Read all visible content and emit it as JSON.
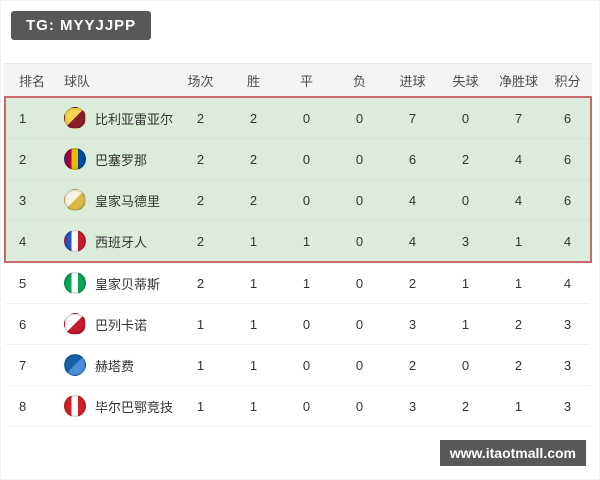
{
  "badges": {
    "tg_label": "TG: MYYJJPP",
    "watermark_label": "www.itaotmall.com",
    "badge_bg": "#58585a"
  },
  "table": {
    "headers": [
      "排名",
      "球队",
      "场次",
      "胜",
      "平",
      "负",
      "进球",
      "失球",
      "净胜球",
      "积分"
    ],
    "highlight": {
      "rows": 4,
      "background": "#dcecdb",
      "border_color": "#c96a6a"
    },
    "rows": [
      {
        "rank": "1",
        "team": "比利亚雷亚尔",
        "logo_icon": "villarreal-crest",
        "logo_colors": [
          "#f2d64b",
          "#8a1f2c"
        ],
        "stats": [
          "2",
          "2",
          "0",
          "0",
          "7",
          "0",
          "7",
          "6"
        ]
      },
      {
        "rank": "2",
        "team": "巴塞罗那",
        "logo_icon": "barcelona-crest",
        "logo_colors": [
          "#a50044",
          "#edbb00",
          "#004d98"
        ],
        "stats": [
          "2",
          "2",
          "0",
          "0",
          "6",
          "2",
          "4",
          "6"
        ]
      },
      {
        "rank": "3",
        "team": "皇家马德里",
        "logo_icon": "real-madrid-crest",
        "logo_colors": [
          "#f7f3e6",
          "#d9b84a"
        ],
        "stats": [
          "2",
          "2",
          "0",
          "0",
          "4",
          "0",
          "4",
          "6"
        ]
      },
      {
        "rank": "4",
        "team": "西班牙人",
        "logo_icon": "espanyol-crest",
        "logo_colors": [
          "#2a52be",
          "#ffffff",
          "#c61b2e"
        ],
        "stats": [
          "2",
          "1",
          "1",
          "0",
          "4",
          "3",
          "1",
          "4"
        ]
      },
      {
        "rank": "5",
        "team": "皇家贝蒂斯",
        "logo_icon": "real-betis-crest",
        "logo_colors": [
          "#0aa45c",
          "#ffffff",
          "#0aa45c"
        ],
        "stats": [
          "2",
          "1",
          "1",
          "0",
          "2",
          "1",
          "1",
          "4"
        ]
      },
      {
        "rank": "6",
        "team": "巴列卡诺",
        "logo_icon": "rayo-vallecano-crest",
        "logo_colors": [
          "#ffffff",
          "#c61b2e"
        ],
        "stats": [
          "1",
          "1",
          "0",
          "0",
          "3",
          "1",
          "2",
          "3"
        ]
      },
      {
        "rank": "7",
        "team": "赫塔费",
        "logo_icon": "getafe-crest",
        "logo_colors": [
          "#1461a8",
          "#4a90d9"
        ],
        "stats": [
          "1",
          "1",
          "0",
          "0",
          "2",
          "0",
          "2",
          "3"
        ]
      },
      {
        "rank": "8",
        "team": "毕尔巴鄂竞技",
        "logo_icon": "athletic-bilbao-crest",
        "logo_colors": [
          "#d02028",
          "#ffffff",
          "#d02028"
        ],
        "stats": [
          "1",
          "1",
          "0",
          "0",
          "3",
          "2",
          "1",
          "3"
        ]
      }
    ]
  }
}
